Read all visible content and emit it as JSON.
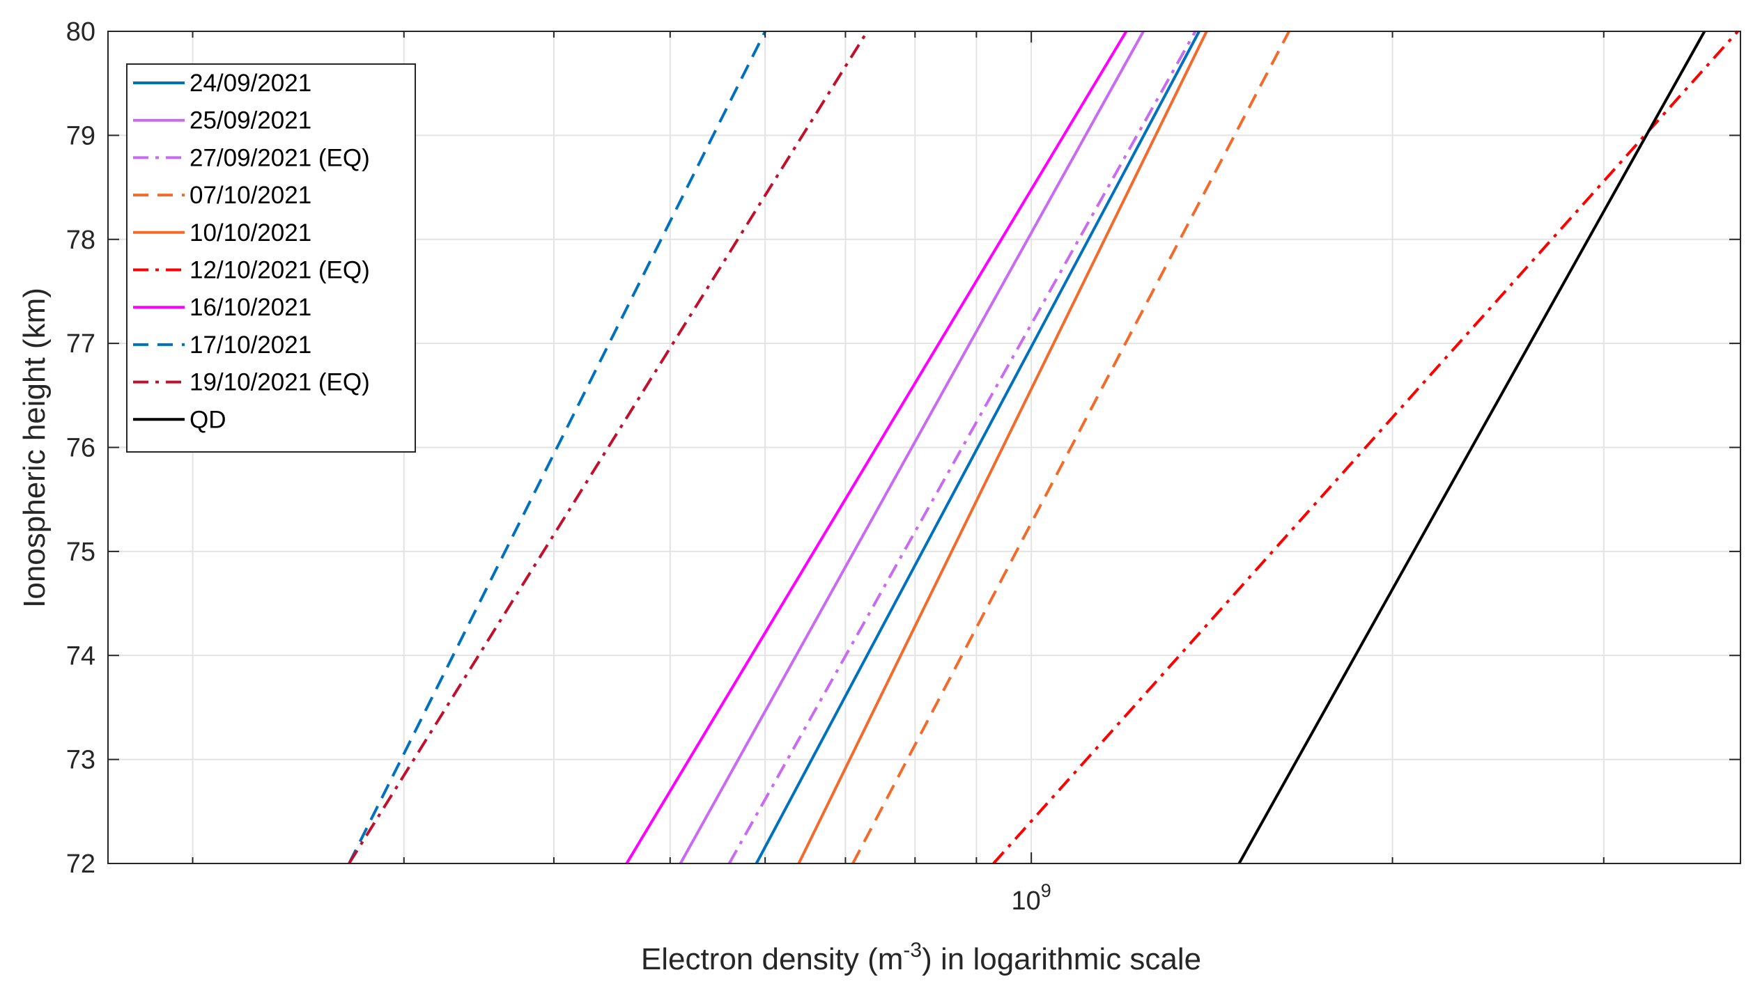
{
  "chart_data": {
    "type": "line",
    "title": "",
    "xlabel": {
      "pre": "Electron density (m",
      "sup": "-3",
      "post": ") in logarithmic scale"
    },
    "ylabel": "Ionospheric height (km)",
    "xscale": "log",
    "xlim": [
      170000000,
      3900000000
    ],
    "ylim": [
      72,
      80
    ],
    "y_ticks": [
      72,
      73,
      74,
      75,
      76,
      77,
      78,
      79,
      80
    ],
    "y_tick_labels": [
      "72",
      "73",
      "74",
      "75",
      "76",
      "77",
      "78",
      "79",
      "80"
    ],
    "x_minor_ticks": [
      200000000,
      300000000,
      400000000,
      500000000,
      600000000,
      700000000,
      800000000,
      900000000,
      2000000000,
      3000000000
    ],
    "x_major_tick": {
      "value": 1000000000,
      "base": "10",
      "exp": "9"
    },
    "grid": true,
    "legend_position": "top-left",
    "series": [
      {
        "name": "24/09/2021",
        "color": "#0072BD",
        "style": "solid",
        "x": [
          590000000,
          1380000000
        ],
        "y": [
          72,
          80
        ]
      },
      {
        "name": "25/09/2021",
        "color": "#C86BF0",
        "style": "solid",
        "x": [
          510000000,
          1240000000
        ],
        "y": [
          72,
          80
        ]
      },
      {
        "name": "27/09/2021 (EQ)",
        "color": "#C86BF0",
        "style": "dashdot",
        "x": [
          560000000,
          1370000000
        ],
        "y": [
          72,
          80
        ]
      },
      {
        "name": "07/10/2021",
        "color": "#F26B2B",
        "style": "dashed",
        "x": [
          710000000,
          1640000000
        ],
        "y": [
          72,
          80
        ]
      },
      {
        "name": "10/10/2021",
        "color": "#F26B2B",
        "style": "solid",
        "x": [
          640000000,
          1400000000
        ],
        "y": [
          72,
          80
        ]
      },
      {
        "name": "12/10/2021 (EQ)",
        "color": "#FF0000",
        "style": "dashdot",
        "x": [
          930000000,
          3880000000
        ],
        "y": [
          72,
          80
        ]
      },
      {
        "name": "16/10/2021",
        "color": "#FF00FF",
        "style": "solid",
        "x": [
          460000000,
          1200000000
        ],
        "y": [
          72,
          80
        ]
      },
      {
        "name": "17/10/2021",
        "color": "#0072BD",
        "style": "dashed",
        "x": [
          270000000,
          600000000
        ],
        "y": [
          72,
          80
        ]
      },
      {
        "name": "19/10/2021 (EQ)",
        "color": "#C0102C",
        "style": "dashdot",
        "x": [
          270000000,
          730000000
        ],
        "y": [
          72,
          80
        ]
      },
      {
        "name": "QD",
        "color": "#000000",
        "style": "solid",
        "x": [
          1490000000,
          3640000000
        ],
        "y": [
          72,
          80
        ]
      }
    ]
  }
}
